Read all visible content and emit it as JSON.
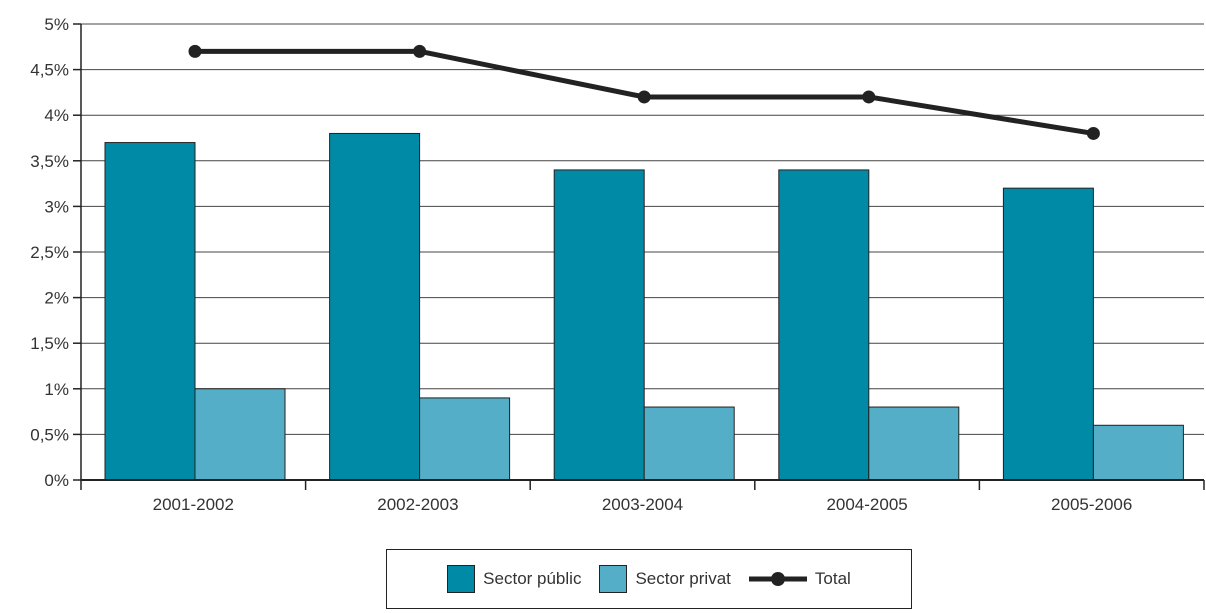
{
  "chart_data": {
    "type": "bar",
    "categories": [
      "2001-2002",
      "2002-2003",
      "2003-2004",
      "2004-2005",
      "2005-2006"
    ],
    "series": [
      {
        "name": "Sector públic",
        "kind": "bar",
        "color": "#008aa5",
        "values": [
          3.7,
          3.8,
          3.4,
          3.4,
          3.2
        ]
      },
      {
        "name": "Sector privat",
        "kind": "bar",
        "color": "#55aec7",
        "values": [
          1.0,
          0.9,
          0.8,
          0.8,
          0.6
        ]
      },
      {
        "name": "Total",
        "kind": "line",
        "color": "#222222",
        "values": [
          4.7,
          4.7,
          4.2,
          4.2,
          3.8
        ]
      }
    ],
    "ylim": [
      0,
      5
    ],
    "yticks": [
      0,
      0.5,
      1,
      1.5,
      2,
      2.5,
      3,
      3.5,
      4,
      4.5,
      5
    ],
    "ytick_labels": [
      "0%",
      "0,5%",
      "1%",
      "1,5%",
      "2%",
      "2,5%",
      "3%",
      "3,5%",
      "4%",
      "4,5%",
      "5%"
    ],
    "grid": true,
    "legend_position": "bottom-center"
  }
}
